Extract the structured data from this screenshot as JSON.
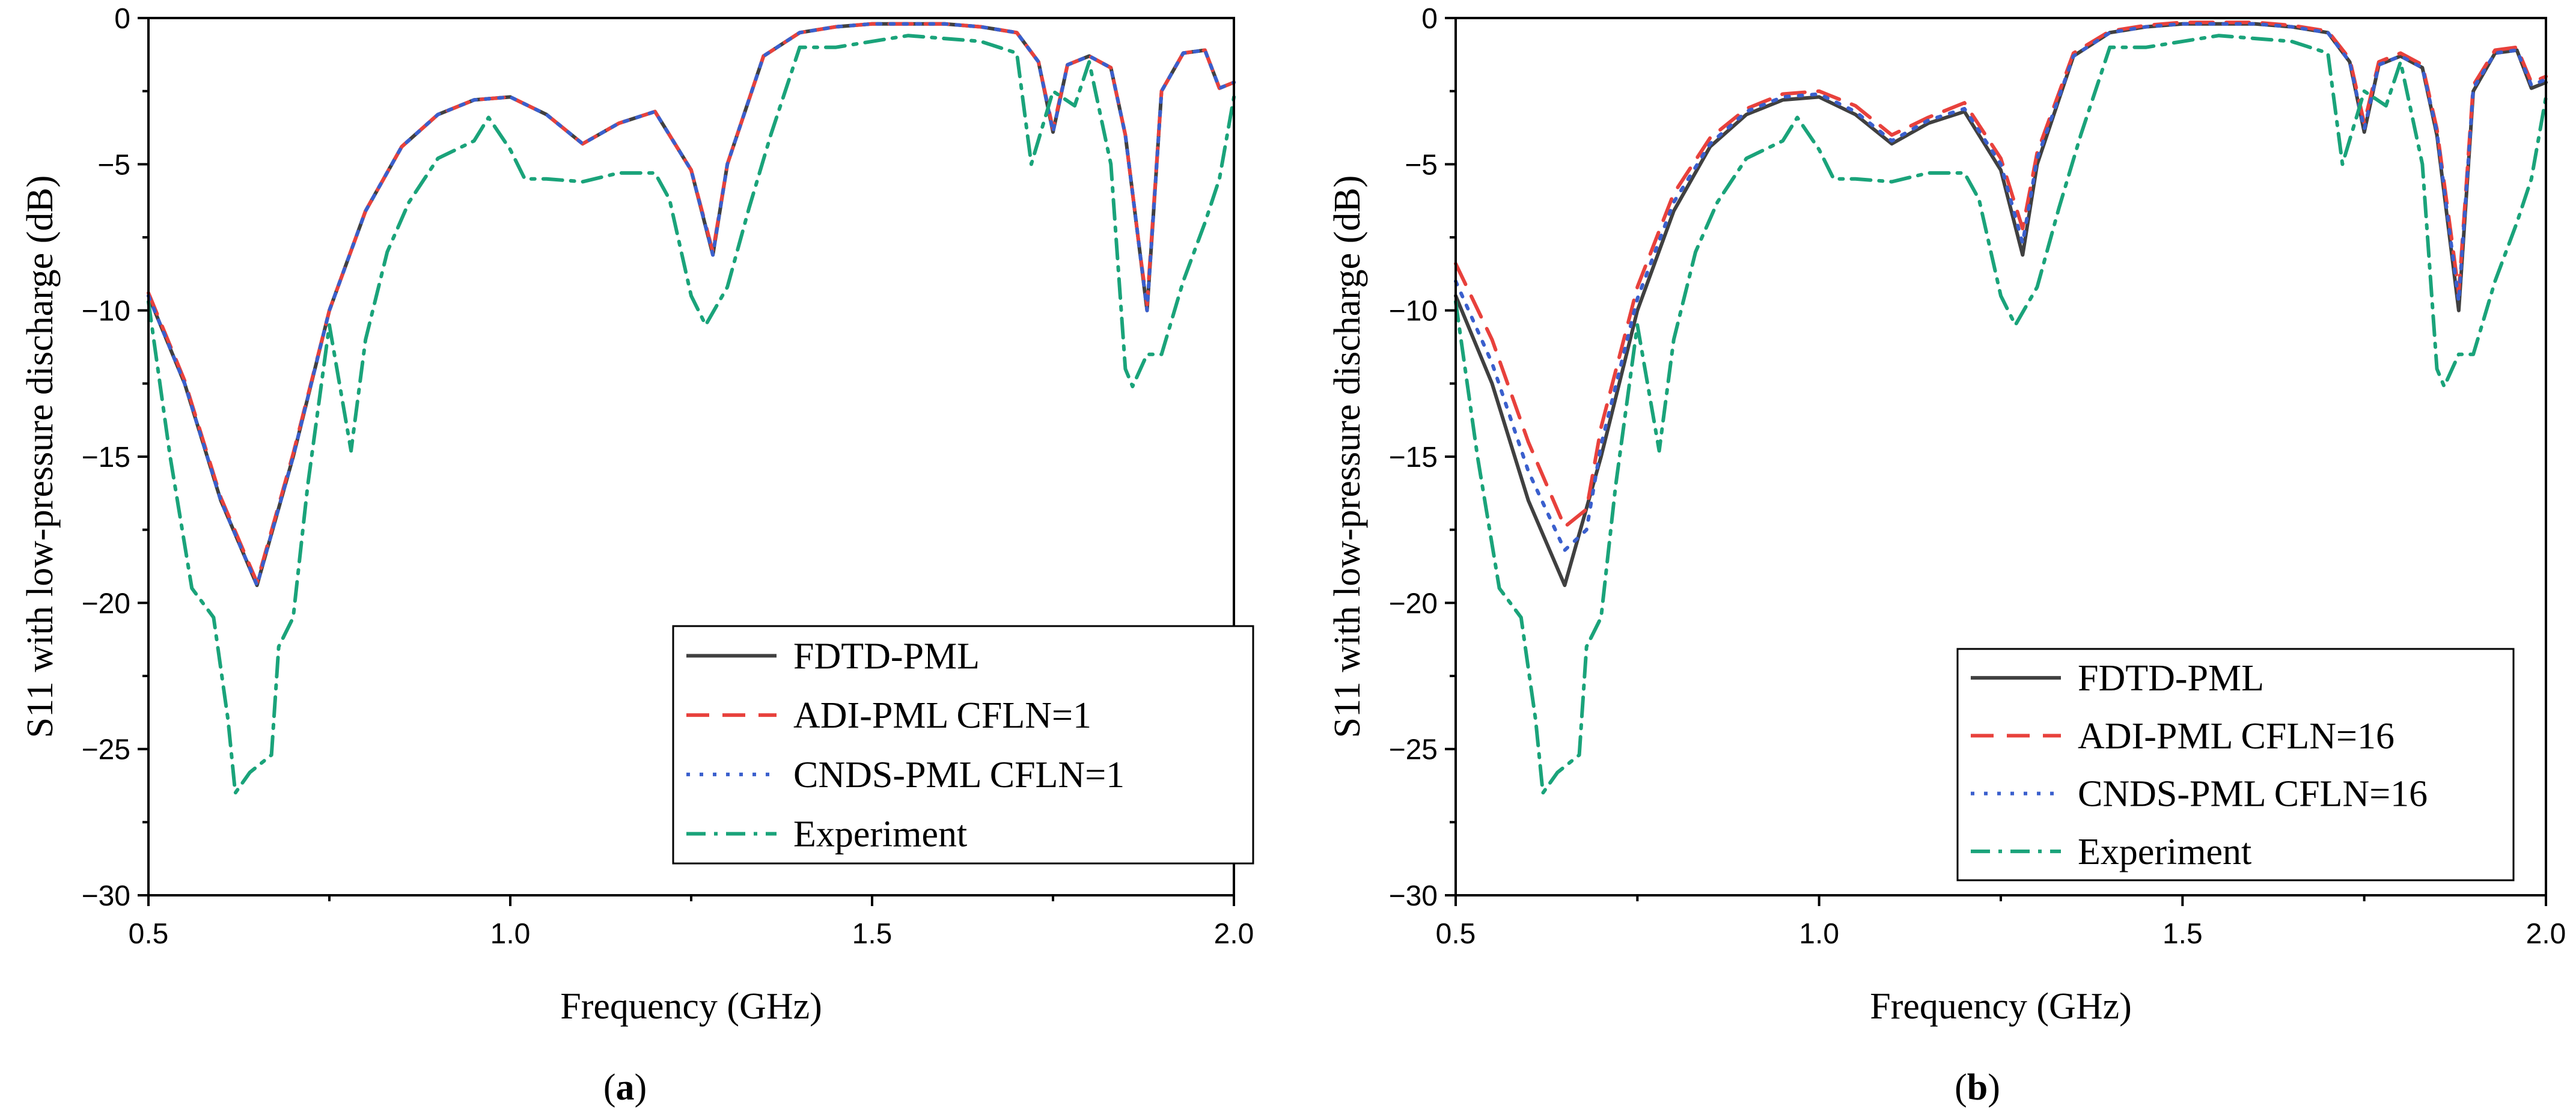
{
  "chart_data": [
    {
      "type": "line",
      "panel_label": "a",
      "xlabel": "Frequency (GHz)",
      "ylabel": "S11 with low-pressure discharge (dB)",
      "xlim": [
        0.5,
        2.0
      ],
      "ylim": [
        -30,
        0
      ],
      "x_ticks": [
        0.5,
        1.0,
        1.5,
        2.0
      ],
      "x_tick_labels": [
        "0.5",
        "1.0",
        "1.5",
        "2.0"
      ],
      "y_ticks": [
        0,
        -5,
        -10,
        -15,
        -20,
        -25,
        -30
      ],
      "y_tick_labels": [
        "0",
        "−5",
        "−10",
        "−15",
        "−20",
        "−25",
        "−30"
      ],
      "legend_position": "bottom-right",
      "series": [
        {
          "name": "FDTD-PML",
          "color": "#404040",
          "dash": "solid",
          "x": [
            0.5,
            0.55,
            0.6,
            0.65,
            0.7,
            0.75,
            0.8,
            0.85,
            0.9,
            0.95,
            1.0,
            1.05,
            1.1,
            1.15,
            1.2,
            1.25,
            1.28,
            1.3,
            1.35,
            1.4,
            1.45,
            1.5,
            1.55,
            1.6,
            1.65,
            1.7,
            1.73,
            1.75,
            1.77,
            1.8,
            1.83,
            1.85,
            1.87,
            1.88,
            1.9,
            1.93,
            1.96,
            1.98,
            2.0
          ],
          "y": [
            -9.5,
            -12.5,
            -16.5,
            -19.4,
            -15,
            -10,
            -6.6,
            -4.4,
            -3.3,
            -2.8,
            -2.7,
            -3.3,
            -4.3,
            -3.6,
            -3.2,
            -5.2,
            -8.1,
            -5,
            -1.3,
            -0.5,
            -0.3,
            -0.2,
            -0.2,
            -0.2,
            -0.3,
            -0.5,
            -1.5,
            -3.9,
            -1.6,
            -1.3,
            -1.7,
            -4,
            -8,
            -10,
            -2.5,
            -1.2,
            -1.1,
            -2.4,
            -2.2
          ]
        },
        {
          "name": "ADI-PML CFLN=1",
          "color": "#e8413c",
          "dash": "long",
          "x": [
            0.5,
            0.55,
            0.6,
            0.65,
            0.7,
            0.75,
            0.8,
            0.85,
            0.9,
            0.95,
            1.0,
            1.05,
            1.1,
            1.15,
            1.2,
            1.25,
            1.28,
            1.3,
            1.35,
            1.4,
            1.45,
            1.5,
            1.55,
            1.6,
            1.65,
            1.7,
            1.73,
            1.75,
            1.77,
            1.8,
            1.83,
            1.85,
            1.87,
            1.88,
            1.9,
            1.93,
            1.96,
            1.98,
            2.0
          ],
          "y": [
            -9.4,
            -12.4,
            -16.4,
            -19.3,
            -14.9,
            -10,
            -6.6,
            -4.4,
            -3.3,
            -2.8,
            -2.7,
            -3.3,
            -4.3,
            -3.6,
            -3.2,
            -5.2,
            -8,
            -5,
            -1.3,
            -0.5,
            -0.3,
            -0.2,
            -0.2,
            -0.2,
            -0.3,
            -0.5,
            -1.5,
            -3.8,
            -1.6,
            -1.3,
            -1.7,
            -4,
            -8,
            -9.8,
            -2.5,
            -1.2,
            -1.1,
            -2.4,
            -2.2
          ]
        },
        {
          "name": "CNDS-PML CFLN=1",
          "color": "#3a5fcd",
          "dash": "dotted",
          "x": [
            0.5,
            0.55,
            0.6,
            0.65,
            0.7,
            0.75,
            0.8,
            0.85,
            0.9,
            0.95,
            1.0,
            1.05,
            1.1,
            1.15,
            1.2,
            1.25,
            1.28,
            1.3,
            1.35,
            1.4,
            1.45,
            1.5,
            1.55,
            1.6,
            1.65,
            1.7,
            1.73,
            1.75,
            1.77,
            1.8,
            1.83,
            1.85,
            1.87,
            1.88,
            1.9,
            1.93,
            1.96,
            1.98,
            2.0
          ],
          "y": [
            -9.5,
            -12.5,
            -16.5,
            -19.4,
            -15,
            -10,
            -6.6,
            -4.4,
            -3.3,
            -2.8,
            -2.7,
            -3.3,
            -4.3,
            -3.6,
            -3.2,
            -5.2,
            -8.1,
            -5,
            -1.3,
            -0.5,
            -0.3,
            -0.2,
            -0.2,
            -0.2,
            -0.3,
            -0.5,
            -1.5,
            -3.9,
            -1.6,
            -1.3,
            -1.7,
            -4,
            -8,
            -10,
            -2.5,
            -1.2,
            -1.1,
            -2.4,
            -2.2
          ]
        },
        {
          "name": "Experiment",
          "color": "#1aa37a",
          "dash": "dashdot",
          "x": [
            0.5,
            0.53,
            0.56,
            0.59,
            0.61,
            0.62,
            0.64,
            0.67,
            0.68,
            0.7,
            0.72,
            0.75,
            0.78,
            0.8,
            0.83,
            0.86,
            0.9,
            0.95,
            0.97,
            1.0,
            1.02,
            1.05,
            1.1,
            1.15,
            1.2,
            1.22,
            1.25,
            1.27,
            1.3,
            1.33,
            1.36,
            1.4,
            1.45,
            1.5,
            1.55,
            1.6,
            1.65,
            1.7,
            1.72,
            1.75,
            1.78,
            1.8,
            1.83,
            1.85,
            1.86,
            1.88,
            1.9,
            1.93,
            1.96,
            1.98,
            2.0
          ],
          "y": [
            -9.7,
            -15,
            -19.5,
            -20.5,
            -24,
            -26.5,
            -25.8,
            -25.2,
            -21.5,
            -20.5,
            -16,
            -10.5,
            -14.8,
            -11,
            -8,
            -6.3,
            -4.8,
            -4.2,
            -3.4,
            -4.5,
            -5.5,
            -5.5,
            -5.6,
            -5.3,
            -5.3,
            -6.2,
            -9.5,
            -10.5,
            -9.2,
            -6.5,
            -4,
            -1,
            -1,
            -0.8,
            -0.6,
            -0.7,
            -0.8,
            -1.2,
            -5,
            -2.5,
            -3,
            -1.5,
            -5,
            -12,
            -12.6,
            -11.5,
            -11.5,
            -9,
            -7,
            -5.5,
            -2.7
          ]
        }
      ]
    },
    {
      "type": "line",
      "panel_label": "b",
      "xlabel": "Frequency (GHz)",
      "ylabel": "S11 with low-pressure discharge (dB)",
      "xlim": [
        0.5,
        2.0
      ],
      "ylim": [
        -30,
        0
      ],
      "x_ticks": [
        0.5,
        1.0,
        1.5,
        2.0
      ],
      "x_tick_labels": [
        "0.5",
        "1.0",
        "1.5",
        "2.0"
      ],
      "y_ticks": [
        0,
        -5,
        -10,
        -15,
        -20,
        -25,
        -30
      ],
      "y_tick_labels": [
        "0",
        "−5",
        "−10",
        "−15",
        "−20",
        "−25",
        "−30"
      ],
      "legend_position": "bottom-right",
      "series": [
        {
          "name": "FDTD-PML",
          "color": "#404040",
          "dash": "solid",
          "x": [
            0.5,
            0.55,
            0.6,
            0.65,
            0.7,
            0.75,
            0.8,
            0.85,
            0.9,
            0.95,
            1.0,
            1.05,
            1.1,
            1.15,
            1.2,
            1.25,
            1.28,
            1.3,
            1.35,
            1.4,
            1.45,
            1.5,
            1.55,
            1.6,
            1.65,
            1.7,
            1.73,
            1.75,
            1.77,
            1.8,
            1.83,
            1.85,
            1.87,
            1.88,
            1.9,
            1.93,
            1.96,
            1.98,
            2.0
          ],
          "y": [
            -9.5,
            -12.5,
            -16.5,
            -19.4,
            -15,
            -10,
            -6.6,
            -4.4,
            -3.3,
            -2.8,
            -2.7,
            -3.3,
            -4.3,
            -3.6,
            -3.2,
            -5.2,
            -8.1,
            -5,
            -1.3,
            -0.5,
            -0.3,
            -0.2,
            -0.2,
            -0.2,
            -0.3,
            -0.5,
            -1.5,
            -3.9,
            -1.6,
            -1.3,
            -1.7,
            -4,
            -8,
            -10,
            -2.5,
            -1.2,
            -1.1,
            -2.4,
            -2.2
          ]
        },
        {
          "name": "ADI-PML CFLN=16",
          "color": "#e8413c",
          "dash": "long",
          "x": [
            0.5,
            0.55,
            0.6,
            0.65,
            0.68,
            0.7,
            0.75,
            0.8,
            0.85,
            0.9,
            0.95,
            1.0,
            1.05,
            1.1,
            1.15,
            1.2,
            1.25,
            1.28,
            1.3,
            1.35,
            1.4,
            1.45,
            1.5,
            1.55,
            1.6,
            1.65,
            1.7,
            1.73,
            1.75,
            1.77,
            1.8,
            1.83,
            1.85,
            1.87,
            1.88,
            1.9,
            1.93,
            1.96,
            1.98,
            2.0
          ],
          "y": [
            -8.4,
            -11,
            -14.5,
            -17.4,
            -16.8,
            -14,
            -9.2,
            -6,
            -4.1,
            -3.1,
            -2.6,
            -2.5,
            -3,
            -4,
            -3.4,
            -2.9,
            -4.8,
            -7.2,
            -4.6,
            -1.2,
            -0.45,
            -0.25,
            -0.15,
            -0.15,
            -0.15,
            -0.25,
            -0.45,
            -1.4,
            -3.6,
            -1.5,
            -1.2,
            -1.6,
            -3.8,
            -7.5,
            -9.4,
            -2.3,
            -1.1,
            -1,
            -2.2,
            -2
          ]
        },
        {
          "name": "CNDS-PML CFLN=16",
          "color": "#3a5fcd",
          "dash": "dotted",
          "x": [
            0.5,
            0.55,
            0.6,
            0.65,
            0.68,
            0.7,
            0.75,
            0.8,
            0.85,
            0.9,
            0.95,
            1.0,
            1.05,
            1.1,
            1.15,
            1.2,
            1.25,
            1.28,
            1.3,
            1.35,
            1.4,
            1.45,
            1.5,
            1.55,
            1.6,
            1.65,
            1.7,
            1.73,
            1.75,
            1.77,
            1.8,
            1.83,
            1.85,
            1.87,
            1.88,
            1.9,
            1.93,
            1.96,
            1.98,
            2.0
          ],
          "y": [
            -9,
            -11.8,
            -15.5,
            -18.2,
            -17.5,
            -14.6,
            -9.6,
            -6.3,
            -4.3,
            -3.2,
            -2.7,
            -2.6,
            -3.2,
            -4.2,
            -3.5,
            -3.1,
            -5,
            -7.7,
            -4.8,
            -1.3,
            -0.5,
            -0.3,
            -0.2,
            -0.2,
            -0.2,
            -0.3,
            -0.5,
            -1.5,
            -3.8,
            -1.6,
            -1.3,
            -1.7,
            -3.9,
            -7.8,
            -9.7,
            -2.4,
            -1.2,
            -1.1,
            -2.3,
            -2.1
          ]
        },
        {
          "name": "Experiment",
          "color": "#1aa37a",
          "dash": "dashdot",
          "x": [
            0.5,
            0.53,
            0.56,
            0.59,
            0.61,
            0.62,
            0.64,
            0.67,
            0.68,
            0.7,
            0.72,
            0.75,
            0.78,
            0.8,
            0.83,
            0.86,
            0.9,
            0.95,
            0.97,
            1.0,
            1.02,
            1.05,
            1.1,
            1.15,
            1.2,
            1.22,
            1.25,
            1.27,
            1.3,
            1.33,
            1.36,
            1.4,
            1.45,
            1.5,
            1.55,
            1.6,
            1.65,
            1.7,
            1.72,
            1.75,
            1.78,
            1.8,
            1.83,
            1.85,
            1.86,
            1.88,
            1.9,
            1.93,
            1.96,
            1.98,
            2.0
          ],
          "y": [
            -9.7,
            -15,
            -19.5,
            -20.5,
            -24,
            -26.5,
            -25.8,
            -25.2,
            -21.5,
            -20.5,
            -16,
            -10.5,
            -14.8,
            -11,
            -8,
            -6.3,
            -4.8,
            -4.2,
            -3.4,
            -4.5,
            -5.5,
            -5.5,
            -5.6,
            -5.3,
            -5.3,
            -6.2,
            -9.5,
            -10.5,
            -9.2,
            -6.5,
            -4,
            -1,
            -1,
            -0.8,
            -0.6,
            -0.7,
            -0.8,
            -1.2,
            -5,
            -2.5,
            -3,
            -1.5,
            -5,
            -12,
            -12.6,
            -11.5,
            -11.5,
            -9,
            -7,
            -5.5,
            -2.7
          ]
        }
      ]
    }
  ]
}
